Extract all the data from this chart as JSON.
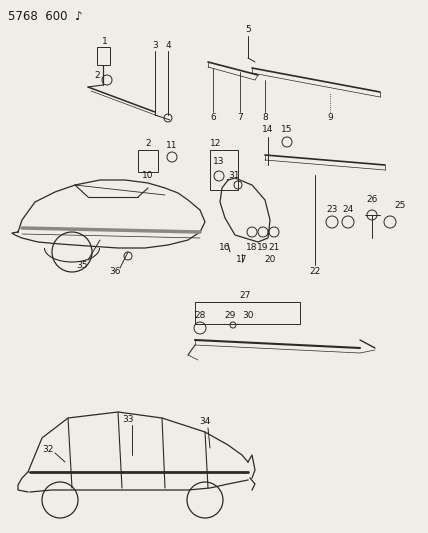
{
  "title": "5768  600  ♪",
  "bg_color": "#f0ede6",
  "line_color": "#2a2a2a",
  "text_color": "#1a1a1a",
  "font_size": 6.5,
  "title_font_size": 8.5
}
